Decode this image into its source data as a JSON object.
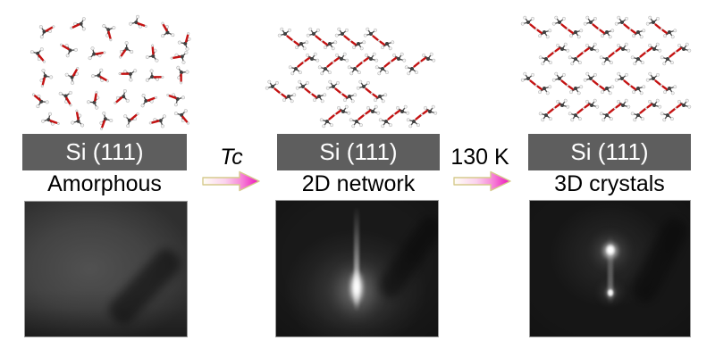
{
  "panels": [
    {
      "name": "amorphous",
      "substrate_label": "Si (111)",
      "phase_label": "Amorphous",
      "diffraction": {
        "style": "diffuse-halo-no-spots"
      },
      "molecules": {
        "kind": "single",
        "items": [
          [
            52,
            34,
            15
          ],
          [
            88,
            28,
            200
          ],
          [
            122,
            36,
            120
          ],
          [
            155,
            26,
            65
          ],
          [
            186,
            34,
            285
          ],
          [
            208,
            46,
            330
          ],
          [
            44,
            62,
            95
          ],
          [
            76,
            55,
            255
          ],
          [
            108,
            60,
            35
          ],
          [
            140,
            57,
            170
          ],
          [
            171,
            60,
            310
          ],
          [
            201,
            64,
            215
          ],
          [
            50,
            88,
            150
          ],
          [
            82,
            84,
            345
          ],
          [
            113,
            86,
            75
          ],
          [
            143,
            83,
            225
          ],
          [
            173,
            86,
            45
          ],
          [
            203,
            84,
            135
          ],
          [
            44,
            112,
            265
          ],
          [
            75,
            110,
            105
          ],
          [
            106,
            112,
            325
          ],
          [
            136,
            110,
            185
          ],
          [
            166,
            112,
            25
          ],
          [
            196,
            110,
            245
          ],
          [
            57,
            135,
            65
          ],
          [
            87,
            133,
            305
          ],
          [
            117,
            136,
            155
          ],
          [
            147,
            133,
            5
          ],
          [
            177,
            136,
            210
          ],
          [
            205,
            131,
            95
          ]
        ]
      }
    },
    {
      "name": "2d-network",
      "substrate_label": "Si (111)",
      "phase_label": "2D network",
      "diffraction": {
        "style": "vertical-streak-with-specular-spot"
      },
      "molecules": {
        "kind": "dimer",
        "items": [
          [
            328,
            43,
            1
          ],
          [
            360,
            43,
            1
          ],
          [
            392,
            43,
            1
          ],
          [
            424,
            43,
            1
          ],
          [
            340,
            72,
            -1
          ],
          [
            373,
            72,
            -1
          ],
          [
            406,
            72,
            -1
          ],
          [
            437,
            72,
            -1
          ],
          [
            470,
            72,
            -1
          ],
          [
            314,
            102,
            1
          ],
          [
            348,
            102,
            1
          ],
          [
            382,
            102,
            1
          ],
          [
            416,
            102,
            1
          ],
          [
            375,
            131,
            -1
          ],
          [
            408,
            131,
            -1
          ],
          [
            441,
            131,
            -1
          ],
          [
            472,
            131,
            -1
          ]
        ]
      }
    },
    {
      "name": "3d-crystals",
      "substrate_label": "Si (111)",
      "phase_label": "3D crystals",
      "diffraction": {
        "style": "two-bragg-spots-on-streak"
      },
      "molecules": {
        "kind": "dimer",
        "items": [
          [
            600,
            30,
            1
          ],
          [
            635,
            30,
            1
          ],
          [
            670,
            30,
            1
          ],
          [
            705,
            30,
            1
          ],
          [
            740,
            30,
            1
          ],
          [
            620,
            61,
            -1
          ],
          [
            653,
            61,
            -1
          ],
          [
            688,
            61,
            -1
          ],
          [
            723,
            61,
            -1
          ],
          [
            756,
            61,
            -1
          ],
          [
            600,
            93,
            1
          ],
          [
            635,
            93,
            1
          ],
          [
            670,
            93,
            1
          ],
          [
            705,
            93,
            1
          ],
          [
            740,
            93,
            1
          ],
          [
            620,
            124,
            -1
          ],
          [
            653,
            124,
            -1
          ],
          [
            688,
            124,
            -1
          ],
          [
            723,
            124,
            -1
          ],
          [
            756,
            124,
            -1
          ]
        ]
      }
    }
  ],
  "transitions": [
    {
      "label": "Tc",
      "italic": true
    },
    {
      "label": "130 K",
      "italic": false
    }
  ],
  "colors": {
    "substrate_bar": "#5e5e5e",
    "substrate_text": "#ffffff",
    "label_text": "#000000",
    "arrow_gradient_start": "#fffef6",
    "arrow_gradient_mid": "#f787d8",
    "arrow_gradient_end": "#ec12bc",
    "arrow_outline": "#d6ca8e",
    "oxygen_red": "#c41212",
    "bond_gray": "#4a4a4a",
    "carbon_gray": "#3f3f3f",
    "hydrogen_white": "#f2f2f2",
    "diffraction_border": "#9a9a9a"
  }
}
